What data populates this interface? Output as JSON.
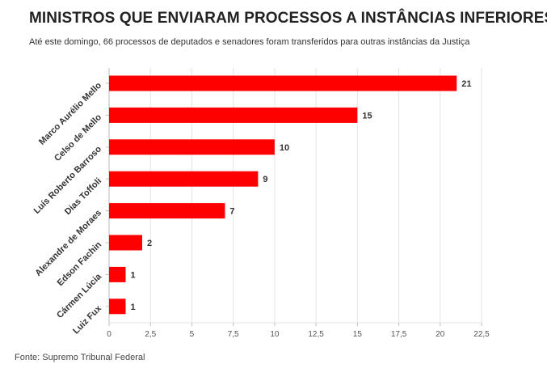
{
  "header": {
    "title": "MINISTROS QUE ENVIARAM PROCESSOS A INSTÂNCIAS INFERIORES",
    "subtitle": "Até este domingo, 66 processos de deputados e senadores foram transferidos para outras instâncias da Justiça"
  },
  "footer": {
    "source": "Fonte: Supremo Tribunal Federal"
  },
  "colors": {
    "bar": "#ff0000",
    "grid": "#e3e3e3",
    "axis": "#bbbbbb"
  },
  "chart_data": {
    "type": "bar",
    "orientation": "horizontal",
    "title": "MINISTROS QUE ENVIARAM PROCESSOS A INSTÂNCIAS INFERIORES",
    "subtitle": "Até este domingo, 66 processos de deputados e senadores foram transferidos para outras instâncias da Justiça",
    "categories": [
      "Marco Aurélio Mello",
      "Celso de Mello",
      "Luís Roberto Barroso",
      "Dias Toffoli",
      "Alexandre de Moraes",
      "Edson Fachin",
      "Cármen Lúcia",
      "Luiz Fux"
    ],
    "values": [
      21,
      15,
      10,
      9,
      7,
      2,
      1,
      1
    ],
    "xlabel": "",
    "ylabel": "",
    "xlim": [
      0,
      22.5
    ],
    "xticks": [
      "0",
      "2,5",
      "5",
      "7,5",
      "10",
      "12,5",
      "15",
      "17,5",
      "20",
      "22,5"
    ],
    "grid": true,
    "data_labels": true
  }
}
